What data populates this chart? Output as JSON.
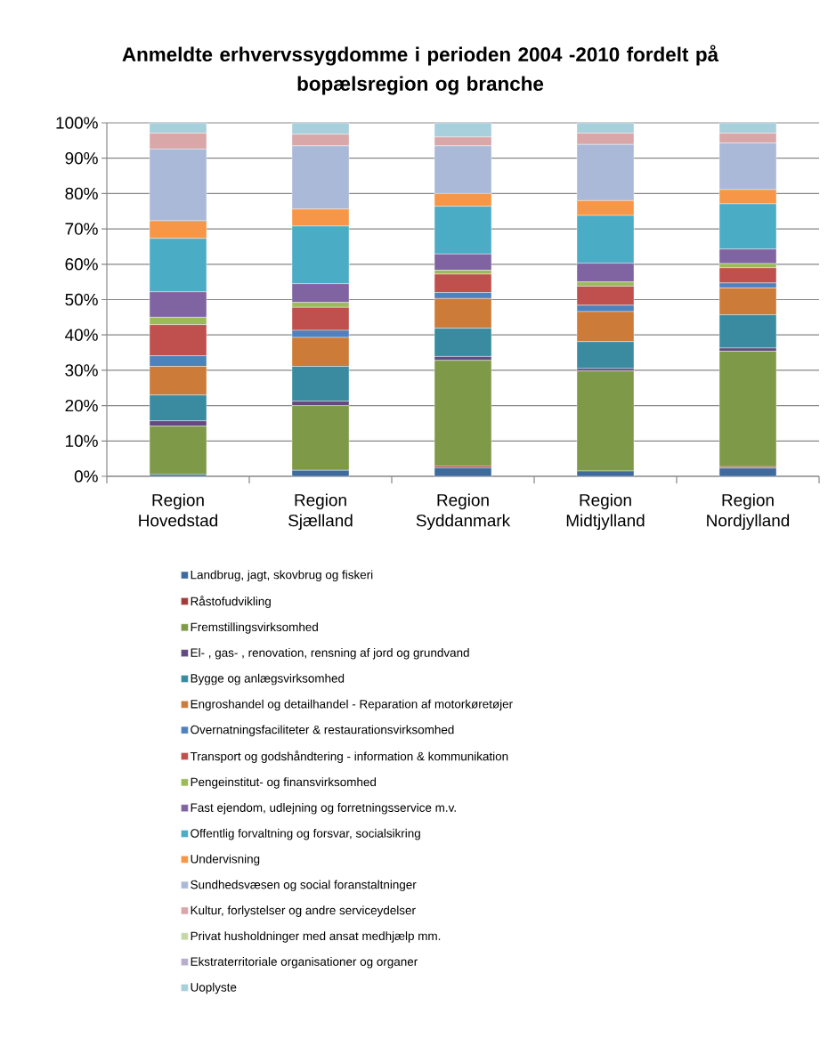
{
  "chart_data": {
    "type": "bar",
    "stacked": true,
    "title": "Anmeldte erhvervssygdomme i perioden 2004 -2010 fordelt på bopælsregion og branche",
    "categories": [
      "Region Hovedstad",
      "Region Sjælland",
      "Region Syddanmark",
      "Region Midtjylland",
      "Region Nordjylland"
    ],
    "series": [
      {
        "name": "Landbrug, jagt, skovbrug og fiskeri",
        "color": "#3e6a9e",
        "values": [
          0.5,
          1.7,
          2.4,
          1.5,
          2.3
        ]
      },
      {
        "name": "Råstofudvikling",
        "color": "#a33b3b",
        "values": [
          0,
          0,
          0.5,
          0,
          0.4
        ]
      },
      {
        "name": "Fremstillingsvirksomhed",
        "color": "#7e9a48",
        "values": [
          13.7,
          18.3,
          29.9,
          28.3,
          32.7
        ]
      },
      {
        "name": "El- , gas- , renovation, rensning af jord og grundvand",
        "color": "#634a80",
        "values": [
          1.5,
          1.3,
          1.1,
          0.7,
          0.9
        ]
      },
      {
        "name": "Bygge og anlægsvirksomhed",
        "color": "#3a8ba0",
        "values": [
          7.3,
          9.8,
          8.0,
          7.6,
          9.4
        ]
      },
      {
        "name": "Engroshandel og detailhandel - Reparation af motorkøretøjer",
        "color": "#cc7b38",
        "values": [
          8.1,
          8.2,
          8.4,
          8.5,
          7.6
        ]
      },
      {
        "name": "Overnatningsfaciliteter & restaurationsvirksomhed",
        "color": "#4f81bd",
        "values": [
          3.0,
          2.0,
          1.7,
          1.8,
          1.4
        ]
      },
      {
        "name": "Transport og godshåndtering - information & kommunikation",
        "color": "#c0504d",
        "values": [
          8.8,
          6.5,
          5.2,
          5.4,
          4.3
        ]
      },
      {
        "name": "Pengeinstitut- og finansvirksomhed",
        "color": "#9bbb59",
        "values": [
          2.1,
          1.4,
          1.1,
          1.2,
          1.2
        ]
      },
      {
        "name": "Fast ejendom, udlejning og forretningsservice m.v.",
        "color": "#8064a2",
        "values": [
          7.2,
          5.3,
          4.6,
          5.3,
          4.1
        ]
      },
      {
        "name": "Offentlig forvaltning og forsvar, socialsikring",
        "color": "#4bacc6",
        "values": [
          15.1,
          16.3,
          13.5,
          13.5,
          12.8
        ]
      },
      {
        "name": "Undervisning",
        "color": "#f79646",
        "values": [
          5.0,
          4.8,
          3.6,
          4.2,
          4.0
        ]
      },
      {
        "name": "Sundhedsvæsen og social foranstaltninger",
        "color": "#aab9d7",
        "values": [
          20.3,
          17.9,
          13.5,
          15.9,
          13.2
        ]
      },
      {
        "name": "Kultur, forlystelser og andre serviceydelser",
        "color": "#d9a7a7",
        "values": [
          4.5,
          3.3,
          2.5,
          3.2,
          2.8
        ]
      },
      {
        "name": "Privat husholdninger med ansat medhjælp mm.",
        "color": "#c4d9a7",
        "values": [
          0,
          0,
          0,
          0,
          0
        ]
      },
      {
        "name": "Ekstraterritoriale organisationer og organer",
        "color": "#b9adcc",
        "values": [
          0,
          0,
          0,
          0,
          0
        ]
      },
      {
        "name": "Uoplyste",
        "color": "#a8cfdc",
        "values": [
          2.9,
          3.2,
          4.0,
          2.9,
          2.9
        ]
      }
    ],
    "ylim": [
      0,
      100
    ],
    "yticks": [
      {
        "value": 0,
        "label": "0%"
      },
      {
        "value": 10,
        "label": "10%"
      },
      {
        "value": 20,
        "label": "20%"
      },
      {
        "value": 30,
        "label": "30%"
      },
      {
        "value": 40,
        "label": "40%"
      },
      {
        "value": 50,
        "label": "50%"
      },
      {
        "value": 60,
        "label": "60%"
      },
      {
        "value": 70,
        "label": "70%"
      },
      {
        "value": 80,
        "label": "80%"
      },
      {
        "value": 90,
        "label": "90%"
      },
      {
        "value": 100,
        "label": "100%"
      }
    ],
    "grid": "y",
    "legend": "bottom"
  }
}
